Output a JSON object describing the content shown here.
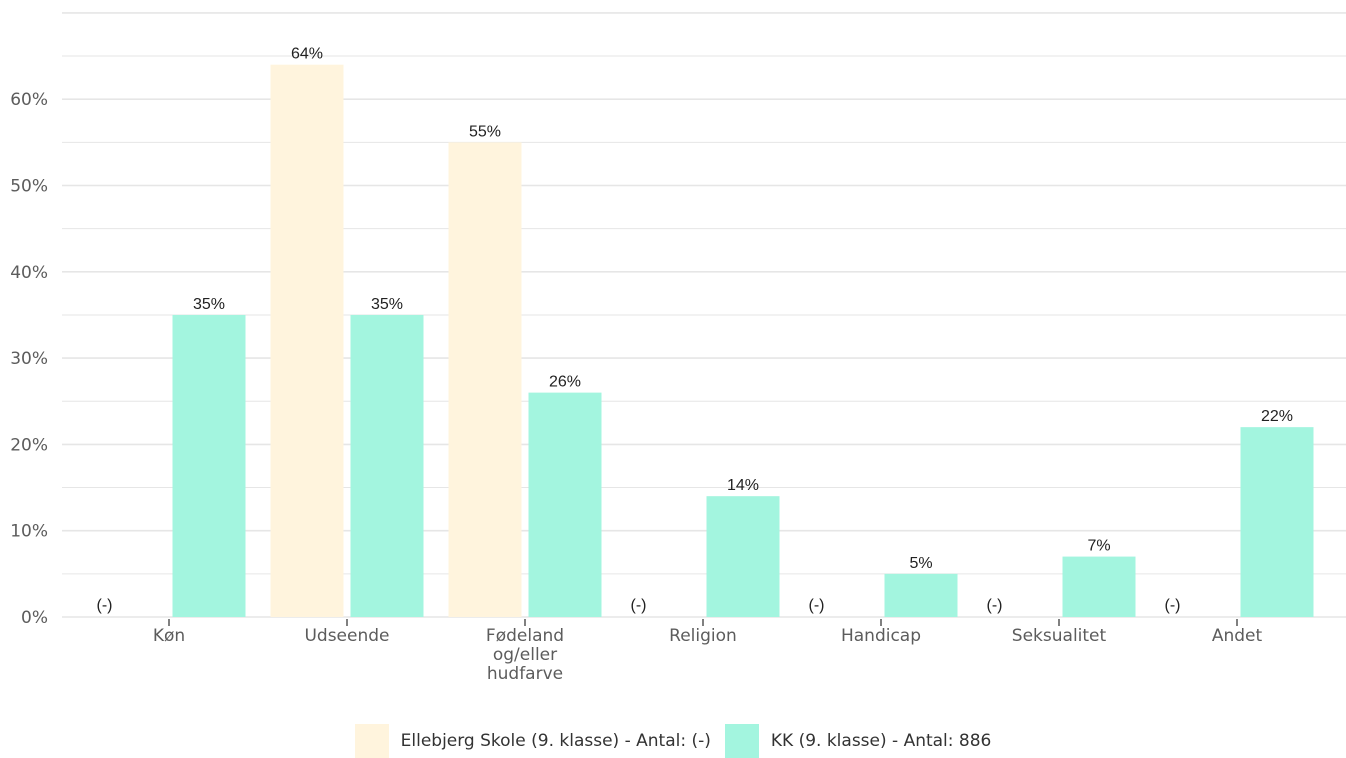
{
  "colors": {
    "school": "#fff4dd",
    "kk": "#a3f5df",
    "grid": "#e6e6e6",
    "axis": "#555555"
  },
  "chart_data": {
    "type": "bar",
    "categories": [
      "Køn",
      "Udseende",
      "Fødeland og/eller hudfarve",
      "Religion",
      "Handicap",
      "Seksualitet",
      "Andet"
    ],
    "category_lines": [
      [
        "Køn"
      ],
      [
        "Udseende"
      ],
      [
        "Fødeland",
        "og/eller",
        "hudfarve"
      ],
      [
        "Religion"
      ],
      [
        "Handicap"
      ],
      [
        "Seksualitet"
      ],
      [
        "Andet"
      ]
    ],
    "series": [
      {
        "name": "Ellebjerg Skole (9. klasse) - Antal: (-)",
        "values": [
          null,
          64,
          55,
          null,
          null,
          null,
          null
        ],
        "labels": [
          "(-)",
          "64%",
          "55%",
          "(-)",
          "(-)",
          "(-)",
          "(-)"
        ]
      },
      {
        "name": "KK (9. klasse) - Antal: 886",
        "values": [
          35,
          35,
          26,
          14,
          5,
          7,
          22
        ],
        "labels": [
          "35%",
          "35%",
          "26%",
          "14%",
          "5%",
          "7%",
          "22%"
        ]
      }
    ],
    "yticks": [
      0,
      10,
      20,
      30,
      40,
      50,
      60
    ],
    "ytick_labels": [
      "0%",
      "10%",
      "20%",
      "30%",
      "40%",
      "50%",
      "60%"
    ],
    "ylim": [
      0,
      70
    ],
    "grid": true,
    "legend_position": "bottom"
  }
}
